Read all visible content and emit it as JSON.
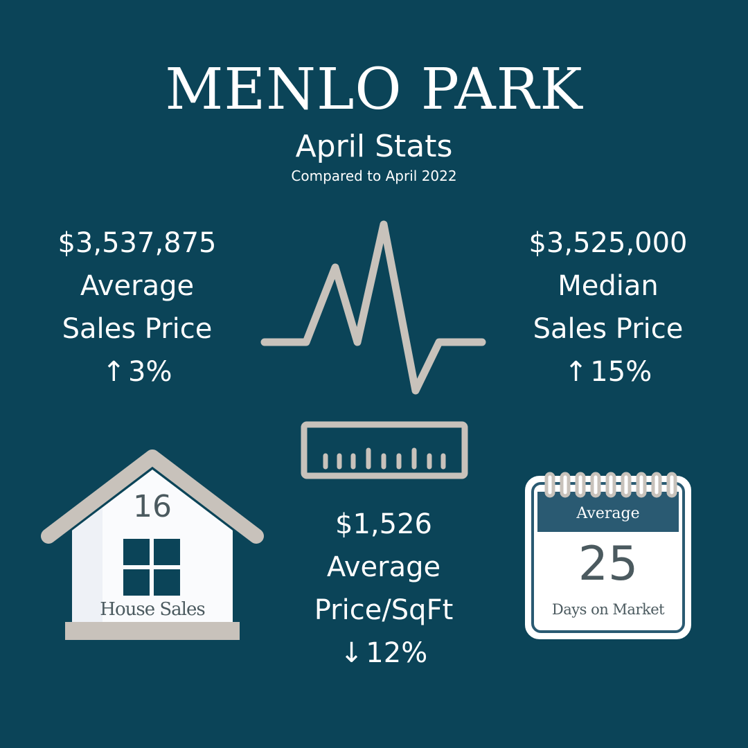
{
  "title": "MENLO PARK",
  "subtitle": "April Stats",
  "comparison": "Compared to April 2022",
  "colors": {
    "background": "#0b4458",
    "icon_gray": "#c8c2bb",
    "calendar_header": "#2a5a72",
    "text_dark": "#4b5a5f"
  },
  "stats": {
    "avg_sales_price": {
      "value": "$3,537,875",
      "line1": "Average",
      "line2": "Sales Price",
      "arrow": "↑",
      "change": "3%"
    },
    "median_sales_price": {
      "value": "$3,525,000",
      "line1": "Median",
      "line2": "Sales Price",
      "arrow": "↑",
      "change": "15%"
    },
    "avg_price_sqft": {
      "value": "$1,526",
      "line1": "Average",
      "line2": "Price/SqFt",
      "arrow": "↓",
      "change": "12%"
    }
  },
  "house": {
    "number": "16",
    "label": "House Sales"
  },
  "calendar": {
    "header": "Average",
    "number": "25",
    "label": "Days on Market"
  },
  "icons": [
    "pulse-line-icon",
    "ruler-icon",
    "house-icon",
    "calendar-icon"
  ]
}
